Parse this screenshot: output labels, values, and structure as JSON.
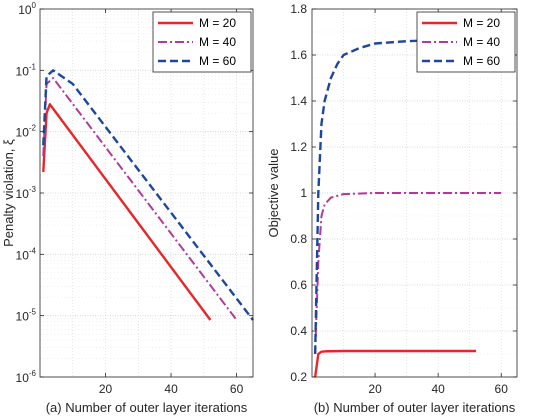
{
  "chart_data": [
    {
      "type": "line",
      "panel": "left",
      "xlabel": "(a) Number of outer layer iterations",
      "ylabel": "Penalty violation, ξ",
      "xlim": [
        0,
        65
      ],
      "ylim": [
        1e-06,
        1
      ],
      "yscale": "log",
      "grid": true,
      "legend_position": "top-right",
      "x_ticks": [
        "20",
        "40",
        "60"
      ],
      "y_ticks": [
        {
          "base": "10",
          "exp": "0"
        },
        {
          "base": "10",
          "exp": "-1"
        },
        {
          "base": "10",
          "exp": "-2"
        },
        {
          "base": "10",
          "exp": "-3"
        },
        {
          "base": "10",
          "exp": "-4"
        },
        {
          "base": "10",
          "exp": "-5"
        },
        {
          "base": "10",
          "exp": "-6"
        }
      ],
      "series": [
        {
          "name": "M = 20",
          "color": "#e8262a",
          "style": "solid",
          "x": [
            1,
            2,
            3,
            52
          ],
          "y": [
            0.0022,
            0.02,
            0.028,
            8.5e-06
          ]
        },
        {
          "name": "M = 40",
          "color": "#b2399b",
          "style": "dashdot",
          "x": [
            1,
            2,
            4,
            60
          ],
          "y": [
            0.004,
            0.06,
            0.075,
            8.5e-06
          ]
        },
        {
          "name": "M = 60",
          "color": "#1c479c",
          "style": "dashed",
          "x": [
            1,
            2,
            4,
            10,
            65
          ],
          "y": [
            0.006,
            0.08,
            0.1,
            0.06,
            8.5e-06
          ]
        }
      ]
    },
    {
      "type": "line",
      "panel": "right",
      "xlabel": "(b) Number of outer layer iterations",
      "ylabel": "Objective value",
      "xlim": [
        0,
        65
      ],
      "ylim": [
        0.2,
        1.8
      ],
      "grid": true,
      "legend_position": "top-right",
      "x_ticks": [
        "20",
        "40",
        "60"
      ],
      "y_ticks": [
        "1.8",
        "1.6",
        "1.4",
        "1.2",
        "1",
        "0.8",
        "0.6",
        "0.4",
        "0.2"
      ],
      "series": [
        {
          "name": "M = 20",
          "color": "#e8262a",
          "style": "solid",
          "x": [
            1,
            2,
            3,
            5,
            10,
            20,
            52
          ],
          "y": [
            0.2,
            0.3,
            0.31,
            0.312,
            0.313,
            0.313,
            0.313
          ]
        },
        {
          "name": "M = 40",
          "color": "#b2399b",
          "style": "dashdot",
          "x": [
            1,
            2,
            3,
            4,
            6,
            10,
            20,
            60
          ],
          "y": [
            0.3,
            0.7,
            0.9,
            0.95,
            0.98,
            0.995,
            1.0,
            1.0
          ]
        },
        {
          "name": "M = 60",
          "color": "#1c479c",
          "style": "dashed",
          "x": [
            1,
            2,
            3,
            4,
            6,
            8,
            10,
            15,
            20,
            30,
            40,
            65
          ],
          "y": [
            0.3,
            1.0,
            1.3,
            1.4,
            1.5,
            1.56,
            1.6,
            1.63,
            1.65,
            1.66,
            1.665,
            1.67
          ]
        }
      ]
    }
  ]
}
